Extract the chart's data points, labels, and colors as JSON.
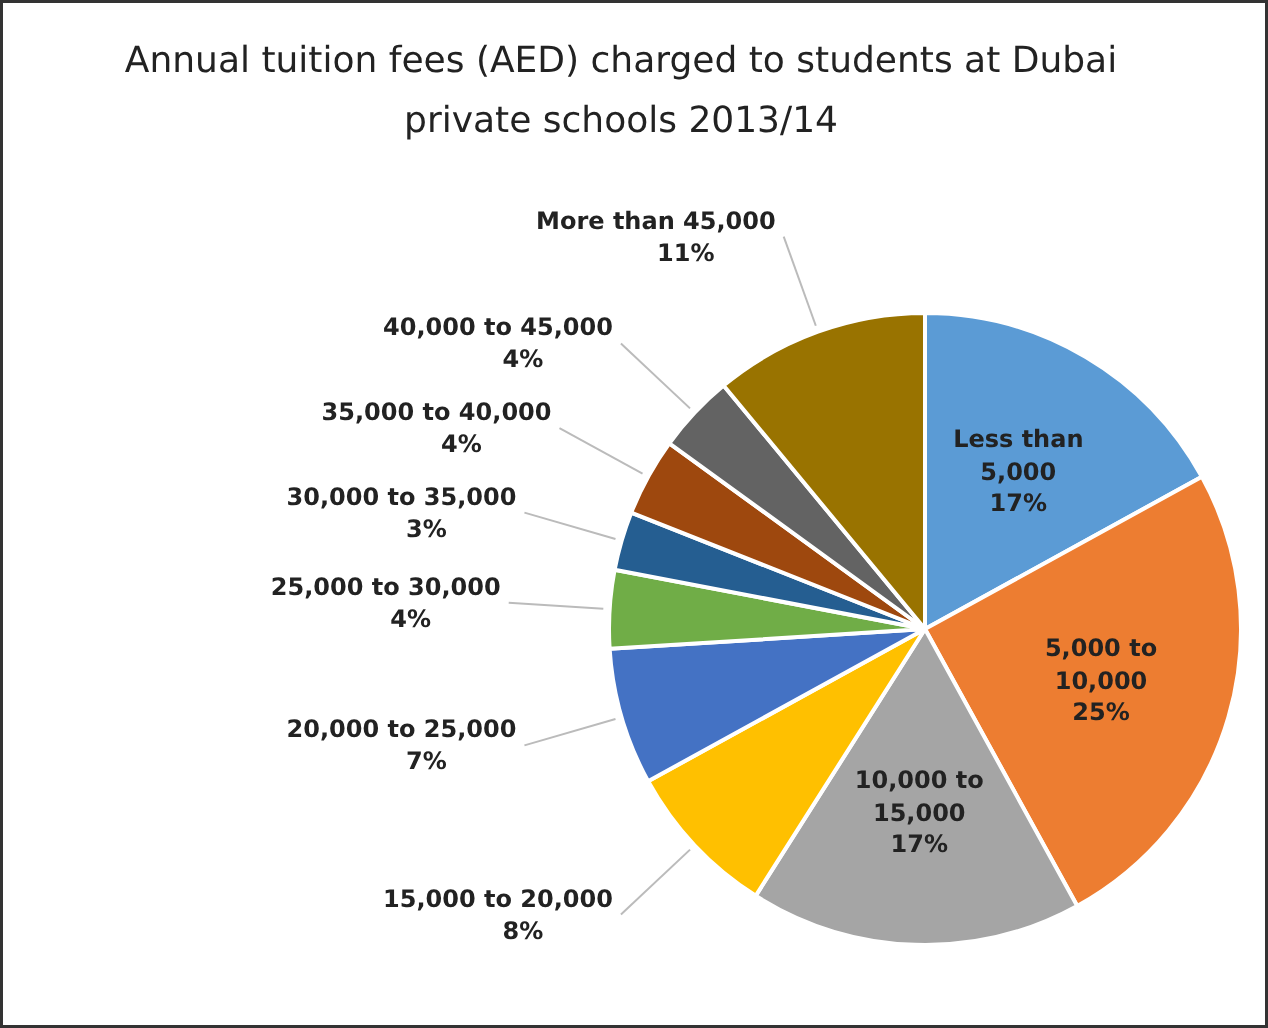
{
  "chart_data": {
    "type": "pie",
    "title": "Annual tuition fees (AED) charged to students at Dubai private schools 2013/14",
    "categories": [
      "Less than 5,000",
      "5,000 to 10,000",
      "10,000 to 15,000",
      "15,000 to 20,000",
      "20,000 to 25,000",
      "25,000 to 30,000",
      "30,000 to 35,000",
      "35,000 to 40,000",
      "40,000 to 45,000",
      "More than 45,000"
    ],
    "values": [
      17,
      25,
      17,
      8,
      7,
      4,
      3,
      4,
      4,
      11
    ],
    "value_labels": [
      "17%",
      "25%",
      "17%",
      "8%",
      "7%",
      "4%",
      "3%",
      "4%",
      "4%",
      "11%"
    ],
    "colors": [
      "#5b9bd5",
      "#ed7d31",
      "#a5a5a5",
      "#ffc000",
      "#4472c4",
      "#70ad47",
      "#255e91",
      "#9e480e",
      "#636363",
      "#997300"
    ]
  }
}
